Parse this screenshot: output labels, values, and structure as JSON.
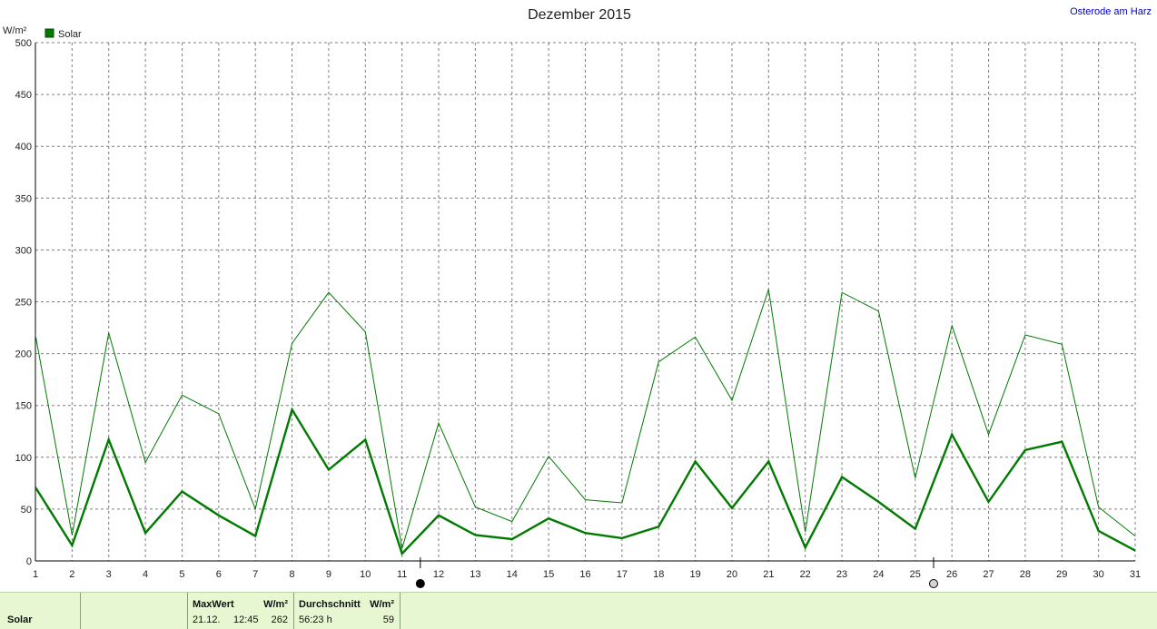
{
  "chart_data": {
    "type": "line",
    "title": "Dezember 2015",
    "location": "Osterode am Harz",
    "unit": "W/m²",
    "legend": [
      {
        "name": "Solar",
        "color": "#007a00"
      }
    ],
    "legend_position": "top-left",
    "grid": true,
    "ylim": [
      0,
      500
    ],
    "yticks": [
      0,
      50,
      100,
      150,
      200,
      250,
      300,
      350,
      400,
      450,
      500
    ],
    "x": [
      1,
      2,
      3,
      4,
      5,
      6,
      7,
      8,
      9,
      10,
      11,
      12,
      13,
      14,
      15,
      16,
      17,
      18,
      19,
      20,
      21,
      22,
      23,
      24,
      25,
      26,
      27,
      28,
      29,
      30,
      31
    ],
    "xlim": [
      1,
      31
    ],
    "series": [
      {
        "name": "Solar",
        "role": "daily maximum",
        "color": "#007a00",
        "values": [
          218,
          25,
          220,
          95,
          160,
          142,
          50,
          210,
          259,
          221,
          12,
          133,
          52,
          38,
          101,
          59,
          56,
          192,
          216,
          155,
          262,
          28,
          259,
          241,
          80,
          227,
          122,
          218,
          209,
          52,
          24
        ]
      },
      {
        "name": "Solar",
        "role": "daily average",
        "color": "#007a00",
        "values": [
          71,
          15,
          117,
          27,
          67,
          44,
          24,
          146,
          88,
          117,
          7,
          44,
          25,
          21,
          41,
          27,
          22,
          33,
          96,
          51,
          96,
          13,
          81,
          57,
          31,
          122,
          57,
          107,
          115,
          29,
          10
        ]
      }
    ],
    "moon_phases": [
      {
        "x": 11.5,
        "phase": "full-moon"
      },
      {
        "x": 25.5,
        "phase": "new-moon"
      }
    ]
  },
  "footer": {
    "label": "Solar",
    "max_header": "MaxWert",
    "max_unit": "W/m²",
    "max_date": "21.12.",
    "max_time": "12:45",
    "max_value": "262",
    "avg_header": "Durchschnitt",
    "avg_unit": "W/m²",
    "avg_duration": "56:23 h",
    "avg_value": "59"
  }
}
